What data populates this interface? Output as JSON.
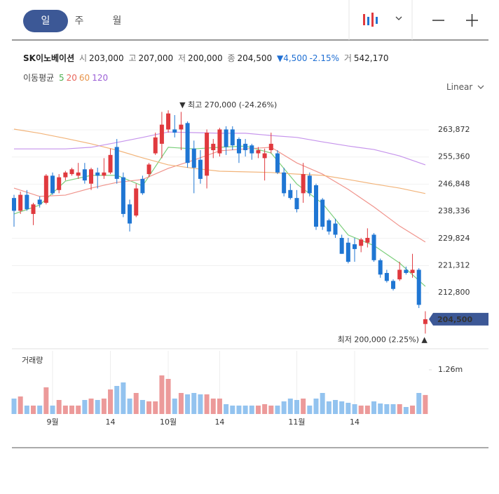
{
  "tabs": [
    "일",
    "주",
    "월"
  ],
  "header": {
    "name": "SK이노베이션",
    "open_label": "시",
    "open": "203,000",
    "high_label": "고",
    "high": "207,000",
    "low_label": "저",
    "low": "200,000",
    "close_label": "종",
    "close": "204,500",
    "change": "▼4,500",
    "change_pct": "-2.15%",
    "volume_label": "거",
    "volume": "542,170"
  },
  "ma_legend_title": "이동평균",
  "scale_menu": "Linear",
  "chart_data": {
    "type": "candlestick",
    "categories": [
      null,
      null,
      null,
      null,
      null,
      null,
      "9월",
      null,
      null,
      null,
      null,
      null,
      null,
      null,
      null,
      "14",
      null,
      null,
      null,
      null,
      null,
      null,
      null,
      null,
      "10월",
      null,
      null,
      null,
      null,
      null,
      null,
      null,
      "14",
      null,
      null,
      null,
      null,
      null,
      null,
      null,
      null,
      null,
      null,
      null,
      "11월",
      null,
      null,
      null,
      null,
      null,
      null,
      null,
      null,
      "14",
      null,
      null,
      null,
      null,
      null,
      null,
      null,
      null,
      null,
      null,
      null
    ],
    "open": [
      242500,
      238500,
      243500,
      237500,
      242000,
      241000,
      249500,
      245000,
      249000,
      250000,
      249500,
      251500,
      247000,
      250500,
      249500,
      250500,
      258500,
      249000,
      240500,
      237000,
      248500,
      250000,
      256500,
      259500,
      264000,
      264000,
      264000,
      266000,
      258000,
      254500,
      249500,
      257500,
      256500,
      264000,
      264000,
      261000,
      259500,
      259000,
      256500,
      255000,
      257500,
      256500,
      250500,
      245000,
      242500,
      244000,
      249500,
      246500,
      242000,
      235500,
      234500,
      230000,
      228500,
      228000,
      227500,
      228500,
      231000,
      223000,
      219000,
      216500,
      217000,
      220000,
      219000,
      220000,
      203000
    ],
    "high": [
      243500,
      244500,
      245000,
      241000,
      243000,
      250000,
      250500,
      250000,
      251000,
      252000,
      253500,
      253500,
      252000,
      252000,
      255000,
      258000,
      261000,
      250500,
      242000,
      247000,
      249500,
      253500,
      263000,
      269500,
      270000,
      268500,
      269500,
      266500,
      260500,
      257500,
      264000,
      261000,
      264500,
      265000,
      265000,
      261500,
      261000,
      259500,
      258500,
      258000,
      263000,
      257500,
      252000,
      247000,
      245000,
      253500,
      250500,
      247000,
      242500,
      236000,
      236000,
      231000,
      230000,
      230000,
      230000,
      233000,
      231500,
      223500,
      220000,
      217000,
      222500,
      221000,
      225000,
      220500,
      207000
    ],
    "low": [
      233500,
      237500,
      238500,
      234000,
      239500,
      240500,
      243500,
      244000,
      248000,
      249500,
      248500,
      247000,
      245000,
      245500,
      248500,
      250000,
      247000,
      236500,
      232000,
      236500,
      243500,
      249000,
      256000,
      255000,
      263000,
      261500,
      257500,
      252000,
      244000,
      247000,
      245500,
      255000,
      255500,
      256000,
      257500,
      253500,
      255500,
      254500,
      255000,
      248000,
      256500,
      250000,
      243000,
      242000,
      238000,
      241000,
      243000,
      232500,
      232500,
      231000,
      230000,
      225000,
      222000,
      222500,
      225500,
      227000,
      222500,
      217500,
      216000,
      213500,
      216500,
      218500,
      217500,
      208000,
      200000
    ],
    "close": [
      238500,
      243500,
      239000,
      240500,
      240500,
      249500,
      244000,
      249000,
      250500,
      251500,
      250500,
      248000,
      251500,
      249500,
      250500,
      256000,
      248500,
      237500,
      234500,
      245500,
      244000,
      253000,
      261500,
      265500,
      269000,
      263000,
      265500,
      253500,
      252000,
      248500,
      263000,
      259500,
      264000,
      258500,
      259000,
      256500,
      257500,
      256500,
      257500,
      256500,
      259500,
      250500,
      244000,
      242500,
      239000,
      250000,
      244000,
      233500,
      233500,
      232000,
      231000,
      225000,
      222500,
      226500,
      229500,
      230000,
      223000,
      218500,
      216500,
      214000,
      220000,
      219000,
      220000,
      209000,
      204500
    ],
    "up_color": "#e0393e",
    "down_color": "#1f76d3",
    "ylim": [
      197000,
      274000
    ],
    "yticks": [
      {
        "value": 263872,
        "label": "263,872"
      },
      {
        "value": 255360,
        "label": "255,360"
      },
      {
        "value": 246848,
        "label": "246,848"
      },
      {
        "value": 238336,
        "label": "238,336"
      },
      {
        "value": 229824,
        "label": "229,824"
      },
      {
        "value": 221312,
        "label": "221,312"
      },
      {
        "value": 212800,
        "label": "212,800"
      }
    ],
    "grid": true,
    "ma_x": [
      0,
      4,
      8,
      12,
      16,
      20,
      24,
      28,
      32,
      36,
      40,
      44,
      48,
      52,
      56,
      60,
      64
    ],
    "moving_averages": [
      {
        "name": "5",
        "color": "#4caf50",
        "line_color": "#7ccf7c",
        "values": [
          237500,
          240300,
          247800,
          249600,
          249600,
          246300,
          258400,
          257900,
          258400,
          258800,
          256600,
          246900,
          240800,
          230900,
          227600,
          222100,
          214800
        ]
      },
      {
        "name": "20",
        "color": "#e8665c",
        "line_color": "#f0948c",
        "values": [
          245600,
          243000,
          243400,
          245600,
          247400,
          248300,
          251800,
          254400,
          257300,
          257900,
          258400,
          253500,
          250000,
          245200,
          239700,
          233700,
          228700
        ]
      },
      {
        "name": "60",
        "color": "#e8944a",
        "line_color": "#f2b47a",
        "values": [
          264100,
          262800,
          261200,
          259500,
          257500,
          255100,
          252900,
          251800,
          250900,
          250700,
          250500,
          250000,
          249600,
          248300,
          246900,
          245600,
          243900
        ]
      },
      {
        "name": "120",
        "color": "#9b5fd6",
        "line_color": "#c694ec",
        "values": [
          257900,
          257900,
          257900,
          258400,
          259900,
          261500,
          263200,
          263000,
          262800,
          262800,
          262100,
          261500,
          260100,
          258800,
          257700,
          255700,
          252900
        ]
      }
    ],
    "annotations": [
      {
        "label": "▼ 최고 270,000 (-24.26%)",
        "x": 24,
        "value": 270000,
        "color": "#4b6aa5"
      },
      {
        "label": "최저 200,000 (2.25%) ▲",
        "x": 64,
        "value": 200000,
        "color": "#4b6aa5"
      }
    ],
    "price_tag": {
      "value": 204500,
      "label": "204,500",
      "color": "#3c5896"
    },
    "volume": {
      "title": "거래량",
      "values": [
        440000,
        500000,
        240000,
        240000,
        240000,
        760000,
        240000,
        400000,
        240000,
        240000,
        240000,
        400000,
        440000,
        400000,
        440000,
        700000,
        800000,
        900000,
        440000,
        600000,
        400000,
        360000,
        360000,
        1100000,
        1000000,
        440000,
        600000,
        560000,
        600000,
        560000,
        560000,
        440000,
        440000,
        280000,
        240000,
        240000,
        240000,
        240000,
        240000,
        280000,
        240000,
        240000,
        360000,
        440000,
        400000,
        440000,
        240000,
        440000,
        600000,
        360000,
        400000,
        360000,
        320000,
        280000,
        240000,
        240000,
        360000,
        300000,
        280000,
        280000,
        280000,
        200000,
        240000,
        600000,
        542170
      ],
      "ylim": [
        0,
        1800000
      ],
      "yticks": [
        {
          "value": 1260000,
          "label": "1.26m"
        }
      ],
      "up_color": "#ec9a9a",
      "down_color": "#93c3ef"
    }
  }
}
